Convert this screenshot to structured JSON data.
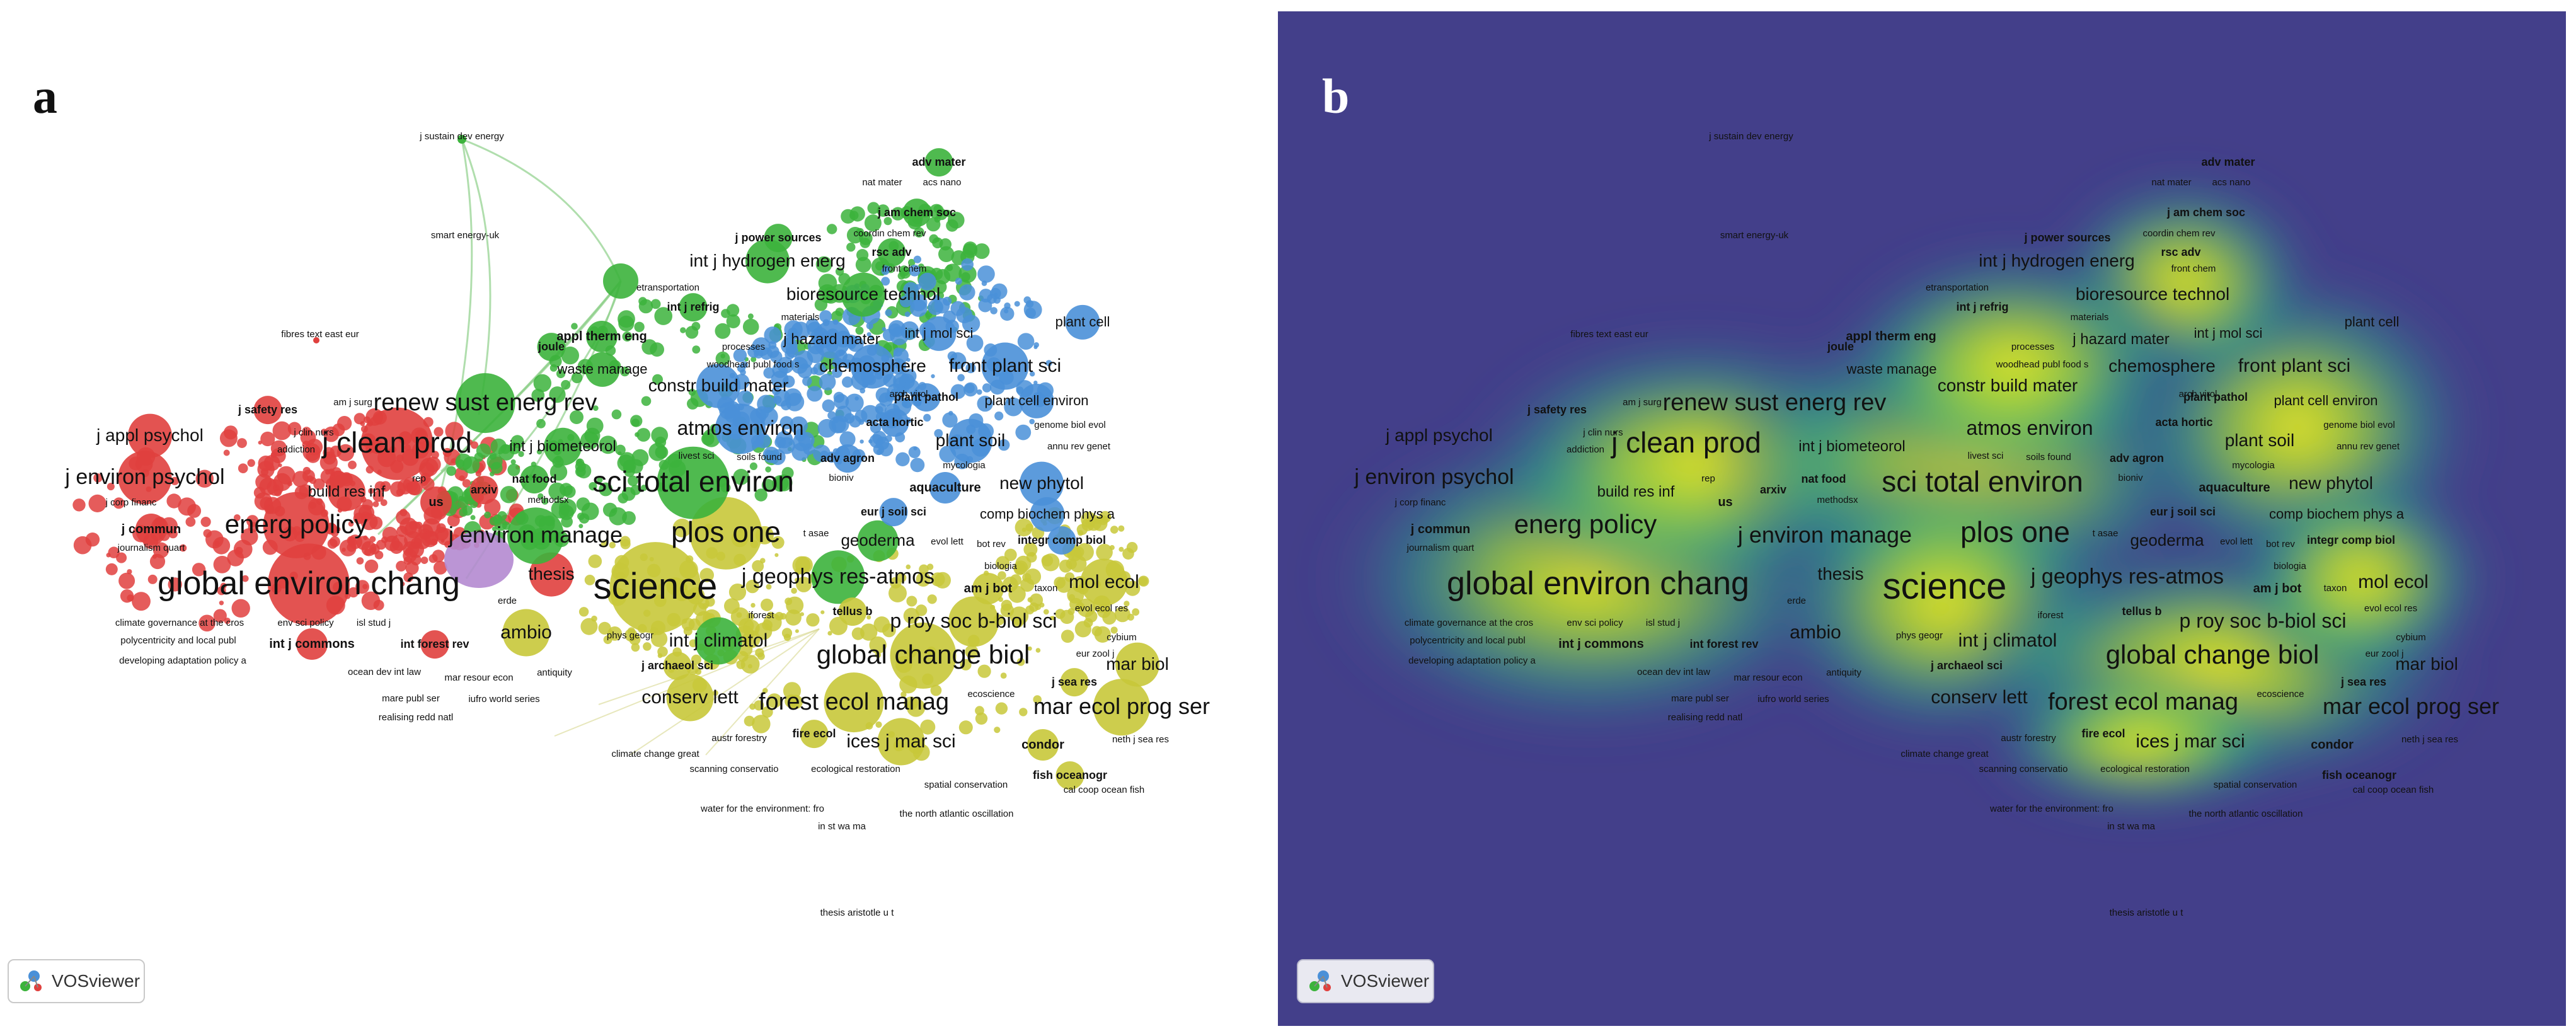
{
  "panel_a": {
    "letter": "a",
    "badge": "VOSviewer"
  },
  "panel_b": {
    "letter": "b",
    "badge": "VOSviewer"
  },
  "colors": {
    "red": "#e0403e",
    "green": "#3cb33c",
    "blue": "#4a90d8",
    "yellow": "#c8c83a",
    "purple": "#b48ad0",
    "density_bg": "#433f8a",
    "density_hot": "#f5ee1a"
  },
  "nodes": [
    {
      "t": "global environ chang",
      "c": "red",
      "s": 52
    },
    {
      "t": "j clean prod",
      "c": "red",
      "s": 46
    },
    {
      "t": "energ policy",
      "c": "red",
      "s": 42
    },
    {
      "t": "j environ psychol",
      "c": "red",
      "s": 34
    },
    {
      "t": "j appl psychol",
      "c": "red",
      "s": 28
    },
    {
      "t": "build res inf",
      "c": "red",
      "s": 24
    },
    {
      "t": "j commun",
      "c": "red",
      "s": 20
    },
    {
      "t": "j safety res",
      "c": "red",
      "s": 18
    },
    {
      "t": "int j commons",
      "c": "red",
      "s": 20
    },
    {
      "t": "int forest rev",
      "c": "red",
      "s": 18
    },
    {
      "t": "thesis",
      "c": "red",
      "s": 28
    },
    {
      "t": "science",
      "c": "yellow",
      "s": 58
    },
    {
      "t": "plos one",
      "c": "yellow",
      "s": 46
    },
    {
      "t": "global change biol",
      "c": "yellow",
      "s": 42
    },
    {
      "t": "forest ecol manag",
      "c": "yellow",
      "s": 38
    },
    {
      "t": "mar ecol prog ser",
      "c": "yellow",
      "s": 36
    },
    {
      "t": "ices j mar sci",
      "c": "yellow",
      "s": 30
    },
    {
      "t": "conserv lett",
      "c": "yellow",
      "s": 30
    },
    {
      "t": "p roy soc b-biol sci",
      "c": "yellow",
      "s": 32
    },
    {
      "t": "mol ecol",
      "c": "yellow",
      "s": 30
    },
    {
      "t": "mar biol",
      "c": "yellow",
      "s": 28
    },
    {
      "t": "ambio",
      "c": "yellow",
      "s": 30
    },
    {
      "t": "j sea res",
      "c": "yellow",
      "s": 18
    },
    {
      "t": "fish oceanogr",
      "c": "yellow",
      "s": 18
    },
    {
      "t": "condor",
      "c": "yellow",
      "s": 20
    },
    {
      "t": "sci total environ",
      "c": "green",
      "s": 46
    },
    {
      "t": "renew sust energ rev",
      "c": "green",
      "s": 38
    },
    {
      "t": "j environ manage",
      "c": "green",
      "s": 36
    },
    {
      "t": "j geophys res-atmos",
      "c": "green",
      "s": 34
    },
    {
      "t": "int j climatol",
      "c": "green",
      "s": 30
    },
    {
      "t": "geoderma",
      "c": "green",
      "s": 26
    },
    {
      "t": "int j hydrogen energ",
      "c": "green",
      "s": 28
    },
    {
      "t": "bioresource technol",
      "c": "green",
      "s": 28
    },
    {
      "t": "int j biometeorol",
      "c": "green",
      "s": 24
    },
    {
      "t": "waste manage",
      "c": "green",
      "s": 22
    },
    {
      "t": "appl therm eng",
      "c": "green",
      "s": 20
    },
    {
      "t": "j power sources",
      "c": "green",
      "s": 18
    },
    {
      "t": "j am chem soc",
      "c": "green",
      "s": 18
    },
    {
      "t": "adv mater",
      "c": "green",
      "s": 18
    },
    {
      "t": "rsc adv",
      "c": "green",
      "s": 18
    },
    {
      "t": "nat food",
      "c": "green",
      "s": 18
    },
    {
      "t": "joule",
      "c": "green",
      "s": 18
    },
    {
      "t": "atmos environ",
      "c": "blue",
      "s": 32
    },
    {
      "t": "front plant sci",
      "c": "blue",
      "s": 30
    },
    {
      "t": "chemosphere",
      "c": "blue",
      "s": 28
    },
    {
      "t": "constr build mater",
      "c": "blue",
      "s": 28
    },
    {
      "t": "plant soil",
      "c": "blue",
      "s": 28
    },
    {
      "t": "new phytol",
      "c": "blue",
      "s": 28
    },
    {
      "t": "j hazard mater",
      "c": "blue",
      "s": 24
    },
    {
      "t": "int j mol sci",
      "c": "blue",
      "s": 22
    },
    {
      "t": "plant cell",
      "c": "blue",
      "s": 22
    },
    {
      "t": "plant cell environ",
      "c": "blue",
      "s": 22
    },
    {
      "t": "comp biochem phys a",
      "c": "blue",
      "s": 22
    },
    {
      "t": "integr comp biol",
      "c": "blue",
      "s": 18
    },
    {
      "t": "aquaculture",
      "c": "blue",
      "s": 20
    },
    {
      "t": "adv agron",
      "c": "blue",
      "s": 18
    },
    {
      "t": "plant pathol",
      "c": "blue",
      "s": 18
    },
    {
      "t": "acta hortic",
      "c": "blue",
      "s": 18
    },
    {
      "t": "eur j soil sci",
      "c": "blue",
      "s": 18
    },
    {
      "t": "int j refrig",
      "c": "green",
      "s": 18
    },
    {
      "t": "am j bot",
      "c": "yellow",
      "s": 20
    },
    {
      "t": "tellus b",
      "c": "yellow",
      "s": 18
    },
    {
      "t": "j archaeol sci",
      "c": "yellow",
      "s": 18
    },
    {
      "t": "fire ecol",
      "c": "yellow",
      "s": 18
    },
    {
      "t": "us",
      "c": "red",
      "s": 20
    },
    {
      "t": "arxiv",
      "c": "red",
      "s": 18
    }
  ],
  "small_labels": [
    "j sustain dev energy",
    "smart energy-uk",
    "fibres text east eur",
    "nat mater",
    "acs nano",
    "coordin chem rev",
    "front chem",
    "etransportation",
    "materials",
    "processes",
    "woodhead publ food s",
    "arch virol",
    "genome biol evol",
    "annu rev genet",
    "mycologia",
    "bioniv",
    "livest sci",
    "soils found",
    "methodsx",
    "j corp financ",
    "journalism quart",
    "addiction",
    "am j surg",
    "j clin nurs",
    "rep",
    "erde",
    "climate governance at the cros",
    "env sci policy",
    "polycentricity and local publ",
    "developing adaptation policy a",
    "ocean dev int law",
    "mare publ ser",
    "realising redd natl",
    "mar resour econ",
    "iufro world series",
    "antiquity",
    "phys geogr",
    "isl stud j",
    "iforest",
    "biologia",
    "taxon",
    "evol ecol res",
    "cybium",
    "eur zool j",
    "ecoscience",
    "austr forestry",
    "neth j sea res",
    "climate change great",
    "scanning conservatio",
    "ecological restoration",
    "spatial conservation",
    "cal coop ocean fish",
    "water for the environment: fro",
    "in st wa ma",
    "the north atlantic oscillation",
    "thesis aristotle u t",
    "evol lett",
    "bot rev",
    "t asae"
  ]
}
